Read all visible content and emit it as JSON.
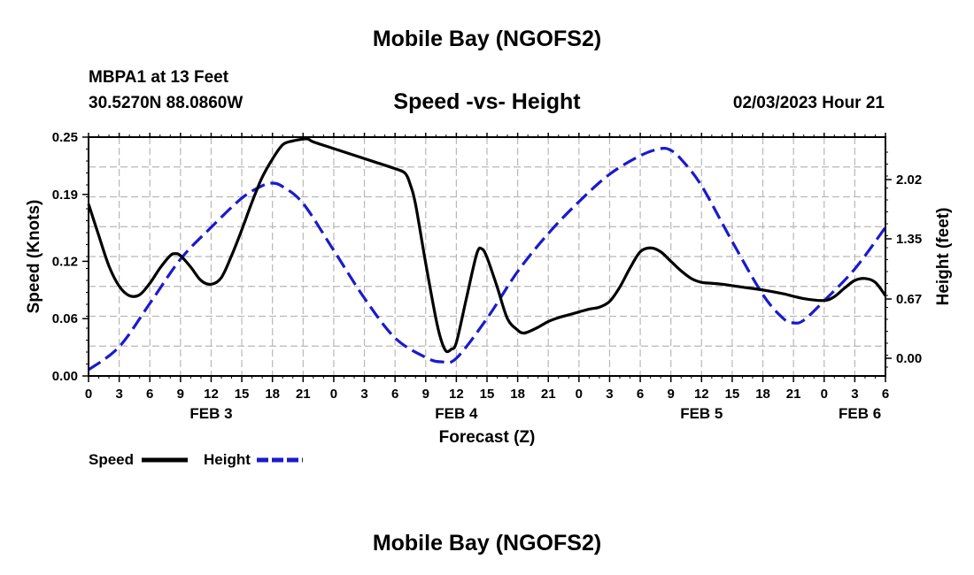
{
  "header": {
    "title": "Mobile Bay (NGOFS2)",
    "station": "MBPA1 at 13 Feet",
    "coords": "30.5270N  88.0860W",
    "subtitle": "Speed -vs- Height",
    "timestamp": "02/03/2023 Hour 21"
  },
  "footer": {
    "title": "Mobile Bay (NGOFS2)"
  },
  "chart_data": {
    "type": "line",
    "xlabel": "Forecast (Z)",
    "ylabel_left": "Speed (Knots)",
    "ylabel_right": "Height (feet)",
    "x_unit": "hours from FEB 3 00Z",
    "xlim": [
      0,
      78
    ],
    "ylim_left": [
      0,
      0.25
    ],
    "ylim_right": [
      -0.2,
      2.5
    ],
    "x_ticks": [
      0,
      3,
      6,
      9,
      12,
      15,
      18,
      21,
      24,
      27,
      30,
      33,
      36,
      39,
      42,
      45,
      48,
      51,
      54,
      57,
      60,
      63,
      66,
      69,
      72,
      75,
      78
    ],
    "x_tick_labels": [
      "0",
      "3",
      "6",
      "9",
      "12",
      "15",
      "18",
      "21",
      "0",
      "3",
      "6",
      "9",
      "12",
      "15",
      "18",
      "21",
      "0",
      "3",
      "6",
      "9",
      "12",
      "15",
      "18",
      "21",
      "0",
      "3",
      "6"
    ],
    "day_labels": [
      {
        "x": 12,
        "label": "FEB 3"
      },
      {
        "x": 36,
        "label": "FEB 4"
      },
      {
        "x": 60,
        "label": "FEB 5"
      },
      {
        "x": 75.5,
        "label": "FEB 6"
      }
    ],
    "y_left_ticks": [
      0,
      0.06,
      0.12,
      0.19,
      0.25
    ],
    "y_left_tick_labels": [
      "0.00",
      "0.06",
      "0.12",
      "0.19",
      "0.25"
    ],
    "y_right_ticks": [
      0,
      0.67,
      1.35,
      2.02
    ],
    "y_right_tick_labels": [
      "0.00",
      "0.67",
      "1.35",
      "2.02"
    ],
    "grid": true,
    "legend": {
      "position": "bottom-left",
      "items": [
        {
          "label": "Speed",
          "color": "#000000",
          "style": "solid"
        },
        {
          "label": "Height",
          "color": "#1a1acc",
          "style": "dashed"
        }
      ]
    },
    "series": [
      {
        "name": "Speed",
        "axis": "left",
        "color": "#000000",
        "style": "solid",
        "x": [
          0,
          1,
          2,
          3,
          4,
          5,
          6,
          7,
          8,
          8.5,
          9,
          10,
          11,
          12,
          13,
          14,
          15,
          16,
          17,
          18,
          19,
          20,
          21,
          21.5,
          22,
          24,
          26,
          28,
          30,
          31,
          31.5,
          32,
          33,
          34,
          34.5,
          35,
          35.5,
          36,
          37,
          38,
          38.5,
          39,
          40,
          41,
          42,
          42.5,
          43,
          44,
          45,
          46,
          47,
          48,
          49,
          50,
          51,
          52,
          53,
          54,
          55,
          56,
          57,
          58,
          59,
          60,
          61,
          62,
          64,
          66,
          68,
          70,
          72,
          73,
          74,
          75,
          76,
          77,
          78
        ],
        "values": [
          0.18,
          0.147,
          0.115,
          0.094,
          0.084,
          0.085,
          0.097,
          0.113,
          0.126,
          0.128,
          0.126,
          0.114,
          0.1,
          0.096,
          0.103,
          0.126,
          0.153,
          0.182,
          0.208,
          0.227,
          0.242,
          0.246,
          0.248,
          0.248,
          0.245,
          0.238,
          0.231,
          0.224,
          0.217,
          0.212,
          0.2,
          0.18,
          0.118,
          0.06,
          0.038,
          0.026,
          0.028,
          0.035,
          0.082,
          0.128,
          0.133,
          0.124,
          0.093,
          0.06,
          0.048,
          0.045,
          0.046,
          0.051,
          0.057,
          0.061,
          0.064,
          0.067,
          0.07,
          0.072,
          0.078,
          0.093,
          0.113,
          0.13,
          0.134,
          0.13,
          0.12,
          0.11,
          0.102,
          0.098,
          0.097,
          0.096,
          0.093,
          0.09,
          0.086,
          0.081,
          0.079,
          0.083,
          0.092,
          0.1,
          0.102,
          0.098,
          0.084
        ]
      },
      {
        "name": "Height",
        "axis": "right",
        "color": "#1a1acc",
        "style": "dashed",
        "x": [
          0,
          3,
          6,
          9,
          12,
          15,
          17,
          18,
          19,
          21,
          24,
          27,
          30,
          33,
          34.5,
          36,
          39,
          42,
          45,
          48,
          51,
          54,
          56,
          57,
          58,
          60,
          63,
          66,
          68,
          69,
          70,
          72,
          75,
          78
        ],
        "values": [
          -0.13,
          0.13,
          0.62,
          1.12,
          1.48,
          1.81,
          1.95,
          1.98,
          1.94,
          1.75,
          1.22,
          0.68,
          0.23,
          0.01,
          -0.04,
          0.0,
          0.45,
          0.98,
          1.41,
          1.77,
          2.08,
          2.29,
          2.37,
          2.35,
          2.25,
          1.95,
          1.32,
          0.72,
          0.45,
          0.4,
          0.43,
          0.65,
          1.01,
          1.48
        ]
      }
    ]
  }
}
